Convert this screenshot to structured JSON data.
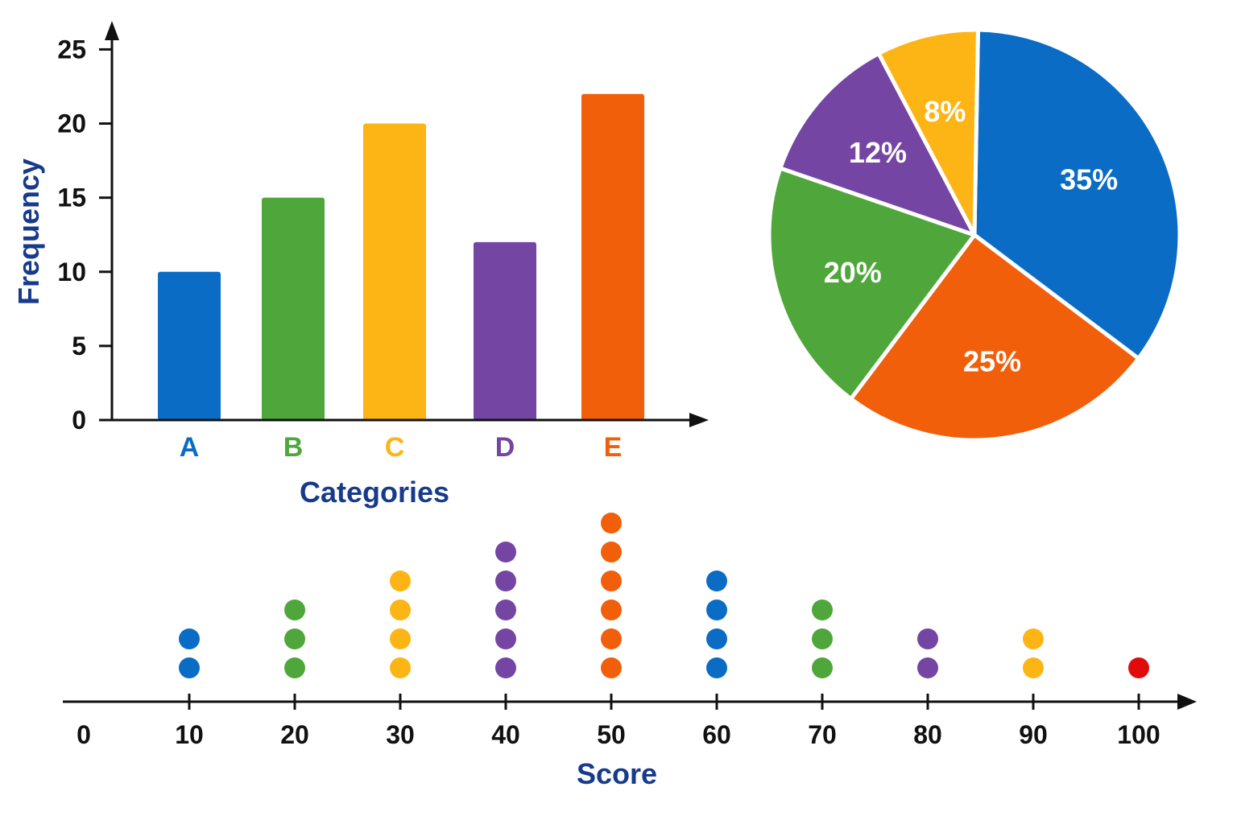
{
  "colors": {
    "blue": "#0a6cc4",
    "green": "#4fa63a",
    "yellow": "#fdb515",
    "purple": "#7445a3",
    "orange": "#f25f0b",
    "red": "#e00c0c",
    "axis_title": "#173a8a",
    "axis": "#111111"
  },
  "chart_data": [
    {
      "type": "bar",
      "xlabel": "Categories",
      "ylabel": "Frequency",
      "categories": [
        "A",
        "B",
        "C",
        "D",
        "E"
      ],
      "values": [
        10,
        15,
        20,
        12,
        22
      ],
      "bar_colors": [
        "#0a6cc4",
        "#4fa63a",
        "#fdb515",
        "#7445a3",
        "#f25f0b"
      ],
      "yticks": [
        0,
        5,
        10,
        15,
        20,
        25
      ],
      "ylim": [
        0,
        26
      ],
      "grid": false
    },
    {
      "type": "pie",
      "slices": [
        {
          "label": "35%",
          "value": 35,
          "color": "#0a6cc4"
        },
        {
          "label": "25%",
          "value": 25,
          "color": "#f25f0b"
        },
        {
          "label": "20%",
          "value": 20,
          "color": "#4fa63a"
        },
        {
          "label": "12%",
          "value": 12,
          "color": "#7445a3"
        },
        {
          "label": "8%",
          "value": 8,
          "color": "#fdb515"
        }
      ]
    },
    {
      "type": "scatter",
      "subtype": "dot-plot",
      "xlabel": "Score",
      "xticks": [
        0,
        10,
        20,
        30,
        40,
        50,
        60,
        70,
        80,
        90,
        100
      ],
      "xlim": [
        0,
        105
      ],
      "points": [
        {
          "x": 10,
          "count": 2,
          "color": "#0a6cc4"
        },
        {
          "x": 20,
          "count": 3,
          "color": "#4fa63a"
        },
        {
          "x": 30,
          "count": 4,
          "color": "#fdb515"
        },
        {
          "x": 40,
          "count": 5,
          "color": "#7445a3"
        },
        {
          "x": 50,
          "count": 6,
          "color": "#f25f0b"
        },
        {
          "x": 60,
          "count": 4,
          "color": "#0a6cc4"
        },
        {
          "x": 70,
          "count": 3,
          "color": "#4fa63a"
        },
        {
          "x": 80,
          "count": 2,
          "color": "#7445a3"
        },
        {
          "x": 90,
          "count": 2,
          "color": "#fdb515"
        },
        {
          "x": 100,
          "count": 1,
          "color": "#e00c0c"
        }
      ],
      "grid": false
    }
  ]
}
